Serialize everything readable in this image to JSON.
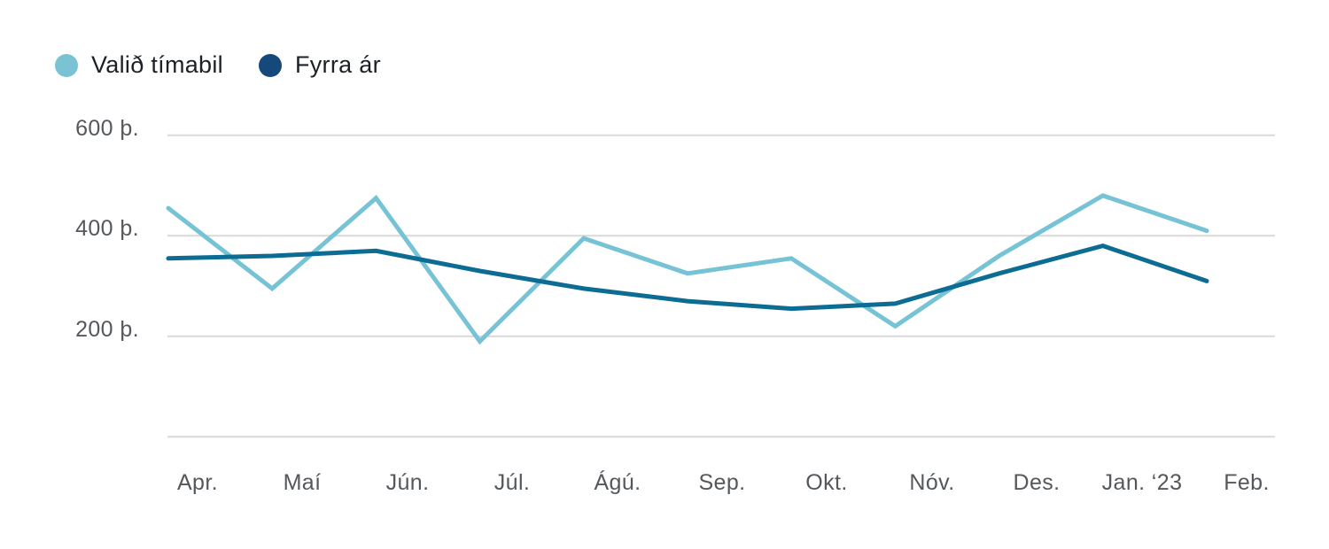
{
  "legend": {
    "series": [
      {
        "label": "Valið tímabil",
        "color": "#79C3D5"
      },
      {
        "label": "Fyrra ár",
        "color": "#15497B"
      }
    ]
  },
  "chart_data": {
    "type": "line",
    "title": "",
    "xlabel": "",
    "ylabel": "",
    "unit": "þ.",
    "categories": [
      "Apr.",
      "Maí",
      "Jún.",
      "Júl.",
      "Ágú.",
      "Sep.",
      "Okt.",
      "Nóv.",
      "Des.",
      "Jan. ‘23",
      "Feb."
    ],
    "series": [
      {
        "name": "Valið tímabil",
        "color": "#77C3D6",
        "values": [
          455,
          295,
          475,
          190,
          395,
          325,
          355,
          220,
          360,
          480,
          410
        ]
      },
      {
        "name": "Fyrra ár",
        "color": "#0D6C94",
        "values": [
          355,
          360,
          370,
          330,
          295,
          270,
          255,
          265,
          325,
          380,
          310
        ]
      }
    ],
    "y_ticks": [
      {
        "value": 600,
        "label": "600 þ."
      },
      {
        "value": 400,
        "label": "400 þ."
      },
      {
        "value": 200,
        "label": "200 þ."
      }
    ],
    "grid_lines": [
      600,
      400,
      200,
      0
    ],
    "ylim": [
      0,
      650
    ],
    "grid": "horizontal",
    "legend_position": "top-left",
    "grid_color": "#D9D9D9",
    "background_color": "#FFFFFF"
  }
}
